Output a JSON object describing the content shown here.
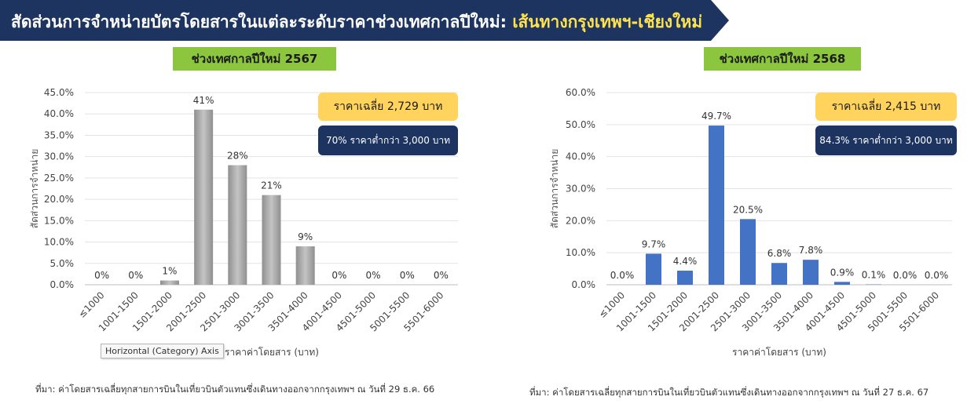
{
  "header": {
    "title_main": "สัดส่วนการจำหน่ายบัตรโดยสารในแต่ละระดับราคาช่วงเทศกาลปีใหม่:",
    "title_route": "เส้นทางกรุงเทพฯ-เชียงใหม่"
  },
  "colors": {
    "banner": "#1d3461",
    "tag": "#8cc63f",
    "bar_2567": "#a9a9a9",
    "bar_2568": "#4472c4",
    "badge_avg": "#ffd35c",
    "badge_low": "#1d3461"
  },
  "tooltip": {
    "text": "Horizontal (Category) Axis"
  },
  "chart_data": [
    {
      "type": "bar",
      "panel_title": "ช่วงเทศกาลปีใหม่ 2567",
      "categories": [
        "≤1000",
        "1001-1500",
        "1501-2000",
        "2001-2500",
        "2501-3000",
        "3001-3500",
        "3501-4000",
        "4001-4500",
        "4501-5000",
        "5001-5500",
        "5501-6000"
      ],
      "values": [
        0,
        0,
        1,
        41,
        28,
        21,
        9,
        0,
        0,
        0,
        0
      ],
      "data_labels": [
        "0%",
        "0%",
        "1%",
        "41%",
        "28%",
        "21%",
        "9%",
        "0%",
        "0%",
        "0%",
        "0%"
      ],
      "ylim": [
        0,
        45
      ],
      "yticks": [
        "0.0%",
        "5.0%",
        "10.0%",
        "15.0%",
        "20.0%",
        "25.0%",
        "30.0%",
        "35.0%",
        "40.0%",
        "45.0%"
      ],
      "xlabel": "ราคาค่าโดยสาร (บาท)",
      "ylabel": "สัดส่วนการจำหน่าย",
      "grid": true,
      "badge_avg": "ราคาเฉลี่ย 2,729 บาท",
      "badge_low": "70% ราคาต่ำกว่า 3,000 บาท",
      "source": "ที่มา: ค่าโดยสารเฉลี่ยทุกสายการบินในเที่ยวบินตัวแทนซึ่งเดินทางออกจากกรุงเทพฯ ณ วันที่ 29 ธ.ค. 66"
    },
    {
      "type": "bar",
      "panel_title": "ช่วงเทศกาลปีใหม่ 2568",
      "categories": [
        "≤1000",
        "1001-1500",
        "1501-2000",
        "2001-2500",
        "2501-3000",
        "3001-3500",
        "3501-4000",
        "4001-4500",
        "4501-5000",
        "5001-5500",
        "5501-6000"
      ],
      "values": [
        0.0,
        9.7,
        4.4,
        49.7,
        20.5,
        6.8,
        7.8,
        0.9,
        0.1,
        0.0,
        0.0
      ],
      "data_labels": [
        "0.0%",
        "9.7%",
        "4.4%",
        "49.7%",
        "20.5%",
        "6.8%",
        "7.8%",
        "0.9%",
        "0.1%",
        "0.0%",
        "0.0%"
      ],
      "ylim": [
        0,
        60
      ],
      "yticks": [
        "0.0%",
        "10.0%",
        "20.0%",
        "30.0%",
        "40.0%",
        "50.0%",
        "60.0%"
      ],
      "xlabel": "ราคาค่าโดยสาร (บาท)",
      "ylabel": "สัดส่วนการจำหน่าย",
      "grid": true,
      "badge_avg": "ราคาเฉลี่ย 2,415 บาท",
      "badge_low": "84.3% ราคาต่ำกว่า 3,000 บาท",
      "source": "ที่มา: ค่าโดยสารเฉลี่ยทุกสายการบินในเที่ยวบินตัวแทนซึ่งเดินทางออกจากกรุงเทพฯ ณ วันที่ 27 ธ.ค. 67"
    }
  ]
}
